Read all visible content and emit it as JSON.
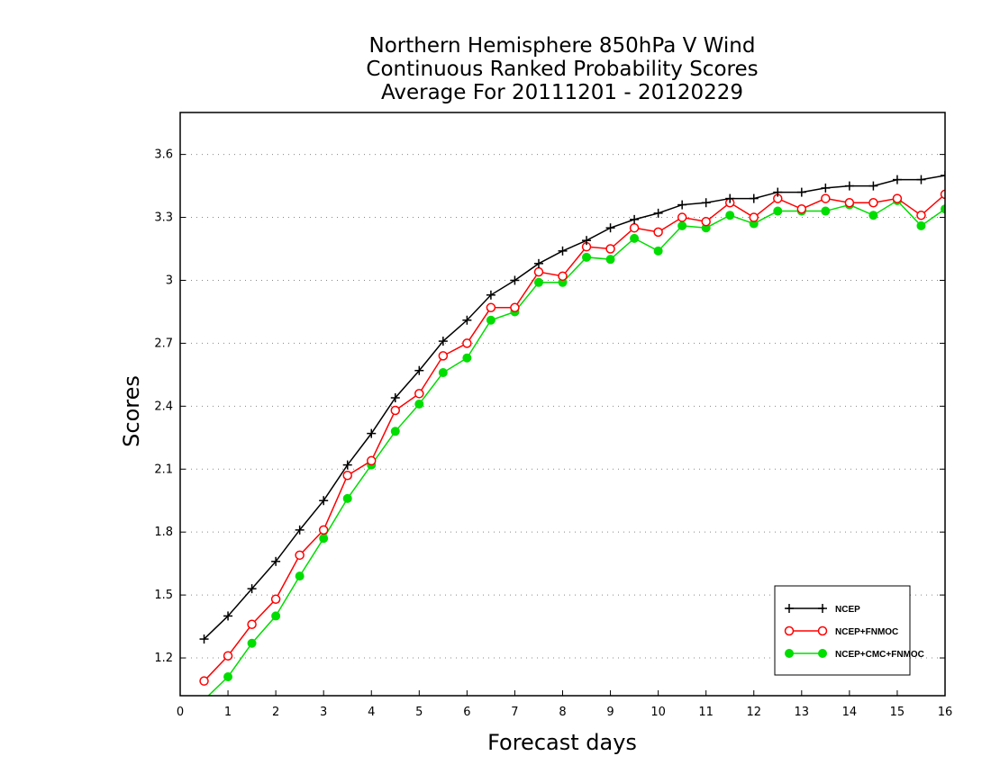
{
  "chart_data": {
    "type": "line",
    "title": [
      "Northern Hemisphere 850hPa V Wind",
      "Continuous Ranked Probability Scores",
      "Average For 20111201 - 20120229"
    ],
    "xlabel": "Forecast days",
    "ylabel": "Scores",
    "xlim": [
      0,
      16
    ],
    "ylim": [
      1.02,
      3.8
    ],
    "xticks": [
      "0",
      "1",
      "2",
      "3",
      "4",
      "5",
      "6",
      "7",
      "8",
      "9",
      "10",
      "11",
      "12",
      "13",
      "14",
      "15",
      "16"
    ],
    "yticks": [
      "1.2",
      "1.5",
      "1.8",
      "2.1",
      "2.4",
      "2.7",
      "3",
      "3.3",
      "3.6"
    ],
    "grid": "horizontal dotted",
    "legend_position": "bottom-right",
    "x": [
      0.5,
      1,
      1.5,
      2,
      2.5,
      3,
      3.5,
      4,
      4.5,
      5,
      5.5,
      6,
      6.5,
      7,
      7.5,
      8,
      8.5,
      9,
      9.5,
      10,
      10.5,
      11,
      11.5,
      12,
      12.5,
      13,
      13.5,
      14,
      14.5,
      15,
      15.5,
      16
    ],
    "series": [
      {
        "name": "NCEP",
        "color": "#000000",
        "marker": "plus",
        "values": [
          1.29,
          1.4,
          1.53,
          1.66,
          1.81,
          1.95,
          2.12,
          2.27,
          2.44,
          2.57,
          2.71,
          2.81,
          2.93,
          3.0,
          3.08,
          3.14,
          3.19,
          3.25,
          3.29,
          3.32,
          3.36,
          3.37,
          3.39,
          3.39,
          3.42,
          3.42,
          3.44,
          3.45,
          3.45,
          3.48,
          3.48,
          3.5
        ]
      },
      {
        "name": "NCEP+FNMOC",
        "color": "#ff0000",
        "marker": "open-circle",
        "values": [
          1.09,
          1.21,
          1.36,
          1.48,
          1.69,
          1.81,
          2.07,
          2.14,
          2.38,
          2.46,
          2.64,
          2.7,
          2.87,
          2.87,
          3.04,
          3.02,
          3.16,
          3.15,
          3.25,
          3.23,
          3.3,
          3.28,
          3.37,
          3.3,
          3.39,
          3.34,
          3.39,
          3.37,
          3.37,
          3.39,
          3.31,
          3.41
        ]
      },
      {
        "name": "NCEP+CMC+FNMOC",
        "color": "#00dd00",
        "marker": "filled-circle",
        "values": [
          1.0,
          1.11,
          1.27,
          1.4,
          1.59,
          1.77,
          1.96,
          2.12,
          2.28,
          2.41,
          2.56,
          2.63,
          2.81,
          2.85,
          2.99,
          2.99,
          3.11,
          3.1,
          3.2,
          3.14,
          3.26,
          3.25,
          3.31,
          3.27,
          3.33,
          3.33,
          3.33,
          3.36,
          3.31,
          3.38,
          3.26,
          3.34
        ]
      }
    ]
  }
}
